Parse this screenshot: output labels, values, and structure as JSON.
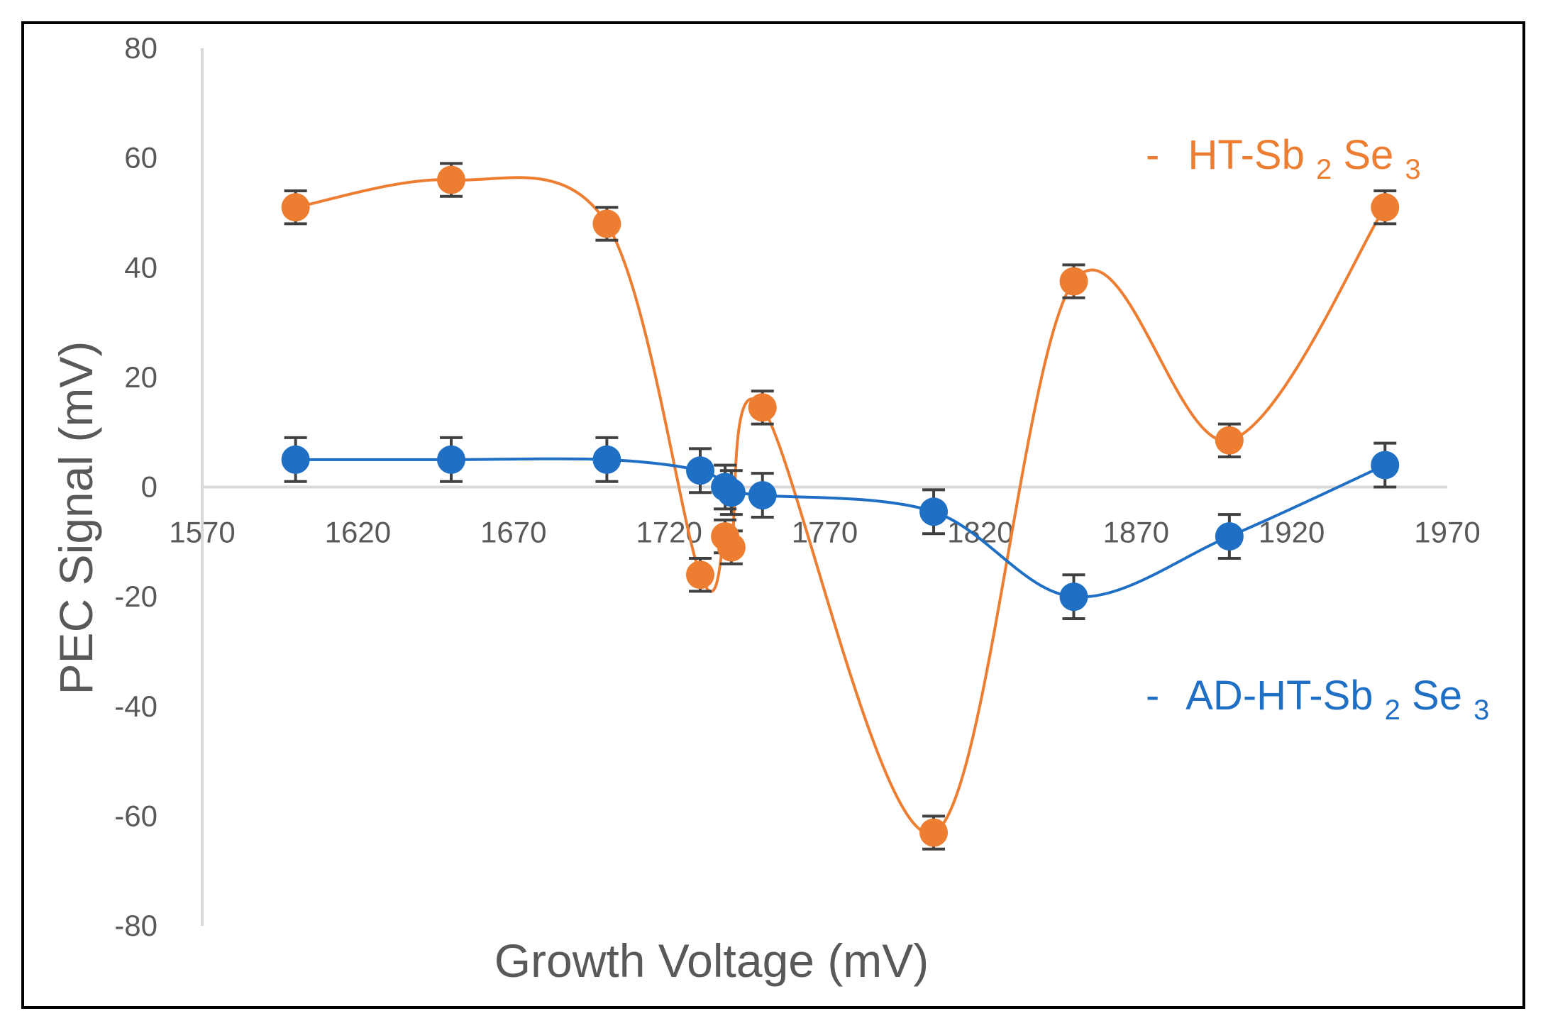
{
  "chart_data": {
    "type": "line",
    "title": "",
    "xlabel": "Growth Voltage (mV)",
    "ylabel": "PEC Signal (mV)",
    "xlim": [
      1570,
      1970
    ],
    "ylim": [
      -80,
      80
    ],
    "xticks": [
      1570,
      1620,
      1670,
      1720,
      1770,
      1820,
      1870,
      1920,
      1970
    ],
    "yticks": [
      80,
      60,
      40,
      20,
      0,
      -20,
      -40,
      -60,
      -80
    ],
    "x_tick_labels": [
      "1570",
      "1620",
      "1670",
      "1720",
      "1770",
      "1820",
      "1870",
      "1920",
      "1970"
    ],
    "y_tick_labels": [
      "80",
      "60",
      "40",
      "20",
      "0",
      "-20",
      "-40",
      "-60",
      "-80"
    ],
    "grid": false,
    "smooth": true,
    "series": [
      {
        "name": "HT-Sb2Se3",
        "legend_prefix": "-",
        "legend_main": "HT-Sb",
        "legend_sub1": "2",
        "legend_mid": "Se",
        "legend_sub2": "3",
        "color": "#ED7D31",
        "x": [
          1600,
          1650,
          1700,
          1730,
          1738,
          1740,
          1750,
          1805,
          1850,
          1900,
          1950
        ],
        "y": [
          51,
          56,
          48,
          -16,
          -9,
          -11,
          14.5,
          -63,
          37.5,
          8.5,
          51
        ],
        "error": [
          3,
          3,
          3,
          3,
          3,
          3,
          3,
          3,
          3,
          3,
          3
        ]
      },
      {
        "name": "AD-HT-Sb2Se3",
        "legend_prefix": "-",
        "legend_main": "AD-HT-Sb",
        "legend_sub1": "2",
        "legend_mid": "Se",
        "legend_sub2": "3",
        "color": "#1F6FC5",
        "x": [
          1600,
          1650,
          1700,
          1730,
          1738,
          1740,
          1750,
          1805,
          1850,
          1900,
          1950
        ],
        "y": [
          5,
          5,
          5,
          3,
          0,
          -1,
          -1.5,
          -4.5,
          -20,
          -9,
          4
        ],
        "error": [
          4,
          4,
          4,
          4,
          4,
          4,
          4,
          4,
          4,
          4,
          4
        ]
      }
    ]
  }
}
